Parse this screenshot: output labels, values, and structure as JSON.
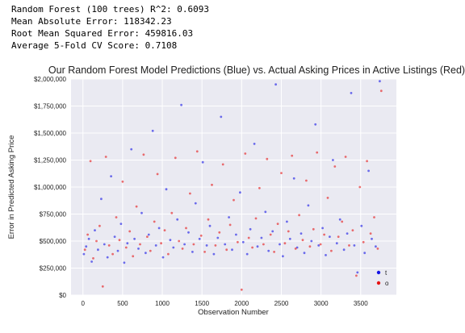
{
  "output": {
    "lines": [
      "Random Forest (100 trees) R^2: 0.6093",
      "Mean Absolute Error: 118342.23",
      "Root Mean Squared Error: 459816.03",
      "Average 5-Fold CV Score: 0.7108"
    ]
  },
  "chart_data": {
    "type": "scatter",
    "title": "Our Random Forest Model Predictions (Blue) vs. Actual Asking Prices in Active Listings (Red)",
    "xlabel": "Observation Number",
    "ylabel": "Error in Predicted Asking Price",
    "xlim": [
      -150,
      3950
    ],
    "ylim": [
      0,
      2000000
    ],
    "xticks": [
      0,
      500,
      1000,
      1500,
      2000,
      2500,
      3000,
      3500
    ],
    "xtick_labels": [
      "0",
      "500",
      "1000",
      "1500",
      "2000",
      "2500",
      "3000",
      "3500"
    ],
    "yticks": [
      0,
      250000,
      500000,
      750000,
      1000000,
      1250000,
      1500000,
      1750000,
      2000000
    ],
    "ytick_labels": [
      "$0",
      "$250,000",
      "$500,000",
      "$750,000",
      "$1,000,000",
      "$1,250,000",
      "$1,500,000",
      "$1,750,000",
      "$2,000,000"
    ],
    "grid": true,
    "legend_position": "bottom-right",
    "series": [
      {
        "name": "t",
        "color": "#1414e6",
        "points": [
          [
            12,
            380000
          ],
          [
            40,
            450000
          ],
          [
            75,
            520000
          ],
          [
            110,
            310000
          ],
          [
            150,
            600000
          ],
          [
            190,
            420000
          ],
          [
            230,
            890000
          ],
          [
            270,
            470000
          ],
          [
            310,
            350000
          ],
          [
            355,
            1100000
          ],
          [
            400,
            540000
          ],
          [
            440,
            410000
          ],
          [
            480,
            660000
          ],
          [
            520,
            300000
          ],
          [
            560,
            480000
          ],
          [
            610,
            1350000
          ],
          [
            650,
            520000
          ],
          [
            700,
            430000
          ],
          [
            740,
            760000
          ],
          [
            790,
            390000
          ],
          [
            830,
            560000
          ],
          [
            880,
            1520000
          ],
          [
            920,
            460000
          ],
          [
            960,
            620000
          ],
          [
            1010,
            350000
          ],
          [
            1050,
            980000
          ],
          [
            1100,
            510000
          ],
          [
            1140,
            440000
          ],
          [
            1190,
            700000
          ],
          [
            1240,
            1760000
          ],
          [
            1280,
            470000
          ],
          [
            1330,
            580000
          ],
          [
            1380,
            400000
          ],
          [
            1420,
            850000
          ],
          [
            1470,
            520000
          ],
          [
            1510,
            1230000
          ],
          [
            1560,
            460000
          ],
          [
            1600,
            640000
          ],
          [
            1650,
            380000
          ],
          [
            1700,
            530000
          ],
          [
            1740,
            1650000
          ],
          [
            1790,
            470000
          ],
          [
            1840,
            720000
          ],
          [
            1880,
            420000
          ],
          [
            1930,
            560000
          ],
          [
            1980,
            950000
          ],
          [
            2020,
            490000
          ],
          [
            2070,
            380000
          ],
          [
            2110,
            610000
          ],
          [
            2160,
            1400000
          ],
          [
            2200,
            450000
          ],
          [
            2250,
            530000
          ],
          [
            2300,
            770000
          ],
          [
            2340,
            410000
          ],
          [
            2390,
            590000
          ],
          [
            2430,
            1950000
          ],
          [
            2480,
            470000
          ],
          [
            2520,
            360000
          ],
          [
            2570,
            680000
          ],
          [
            2610,
            520000
          ],
          [
            2660,
            1080000
          ],
          [
            2700,
            440000
          ],
          [
            2750,
            570000
          ],
          [
            2790,
            390000
          ],
          [
            2840,
            830000
          ],
          [
            2880,
            500000
          ],
          [
            2930,
            1580000
          ],
          [
            2970,
            460000
          ],
          [
            3020,
            620000
          ],
          [
            3060,
            370000
          ],
          [
            3110,
            540000
          ],
          [
            3150,
            1250000
          ],
          [
            3200,
            480000
          ],
          [
            3240,
            700000
          ],
          [
            3290,
            420000
          ],
          [
            3330,
            570000
          ],
          [
            3380,
            1870000
          ],
          [
            3420,
            460000
          ],
          [
            3460,
            210000
          ],
          [
            3510,
            640000
          ],
          [
            3550,
            390000
          ],
          [
            3600,
            1150000
          ],
          [
            3640,
            520000
          ],
          [
            3690,
            450000
          ],
          [
            3740,
            1980000
          ]
        ]
      },
      {
        "name": "o",
        "color": "#e61414",
        "points": [
          [
            25,
            420000
          ],
          [
            60,
            560000
          ],
          [
            95,
            1240000
          ],
          [
            130,
            340000
          ],
          [
            170,
            500000
          ],
          [
            210,
            640000
          ],
          [
            250,
            80000
          ],
          [
            290,
            1280000
          ],
          [
            330,
            460000
          ],
          [
            375,
            380000
          ],
          [
            420,
            720000
          ],
          [
            460,
            510000
          ],
          [
            500,
            1050000
          ],
          [
            545,
            440000
          ],
          [
            590,
            590000
          ],
          [
            630,
            360000
          ],
          [
            675,
            820000
          ],
          [
            720,
            470000
          ],
          [
            765,
            1300000
          ],
          [
            810,
            540000
          ],
          [
            850,
            410000
          ],
          [
            900,
            680000
          ],
          [
            940,
            1120000
          ],
          [
            985,
            480000
          ],
          [
            1030,
            600000
          ],
          [
            1075,
            380000
          ],
          [
            1120,
            760000
          ],
          [
            1165,
            1270000
          ],
          [
            1210,
            500000
          ],
          [
            1255,
            430000
          ],
          [
            1300,
            620000
          ],
          [
            1350,
            940000
          ],
          [
            1395,
            470000
          ],
          [
            1440,
            1330000
          ],
          [
            1490,
            550000
          ],
          [
            1535,
            400000
          ],
          [
            1580,
            700000
          ],
          [
            1625,
            1020000
          ],
          [
            1670,
            460000
          ],
          [
            1720,
            580000
          ],
          [
            1765,
            1210000
          ],
          [
            1810,
            420000
          ],
          [
            1855,
            650000
          ],
          [
            1900,
            880000
          ],
          [
            1950,
            490000
          ],
          [
            2000,
            50000
          ],
          [
            2045,
            1310000
          ],
          [
            2090,
            530000
          ],
          [
            2135,
            440000
          ],
          [
            2180,
            710000
          ],
          [
            2225,
            990000
          ],
          [
            2275,
            470000
          ],
          [
            2320,
            1260000
          ],
          [
            2365,
            560000
          ],
          [
            2410,
            400000
          ],
          [
            2455,
            660000
          ],
          [
            2500,
            1130000
          ],
          [
            2545,
            480000
          ],
          [
            2590,
            590000
          ],
          [
            2635,
            1290000
          ],
          [
            2680,
            430000
          ],
          [
            2725,
            740000
          ],
          [
            2770,
            510000
          ],
          [
            2815,
            1060000
          ],
          [
            2860,
            450000
          ],
          [
            2905,
            610000
          ],
          [
            2950,
            1320000
          ],
          [
            2995,
            470000
          ],
          [
            3040,
            560000
          ],
          [
            3085,
            900000
          ],
          [
            3130,
            410000
          ],
          [
            3175,
            1190000
          ],
          [
            3220,
            540000
          ],
          [
            3265,
            680000
          ],
          [
            3310,
            1280000
          ],
          [
            3355,
            460000
          ],
          [
            3400,
            600000
          ],
          [
            3445,
            180000
          ],
          [
            3490,
            1000000
          ],
          [
            3535,
            490000
          ],
          [
            3580,
            1240000
          ],
          [
            3625,
            570000
          ],
          [
            3670,
            720000
          ],
          [
            3715,
            430000
          ],
          [
            3760,
            1890000
          ]
        ]
      }
    ]
  }
}
